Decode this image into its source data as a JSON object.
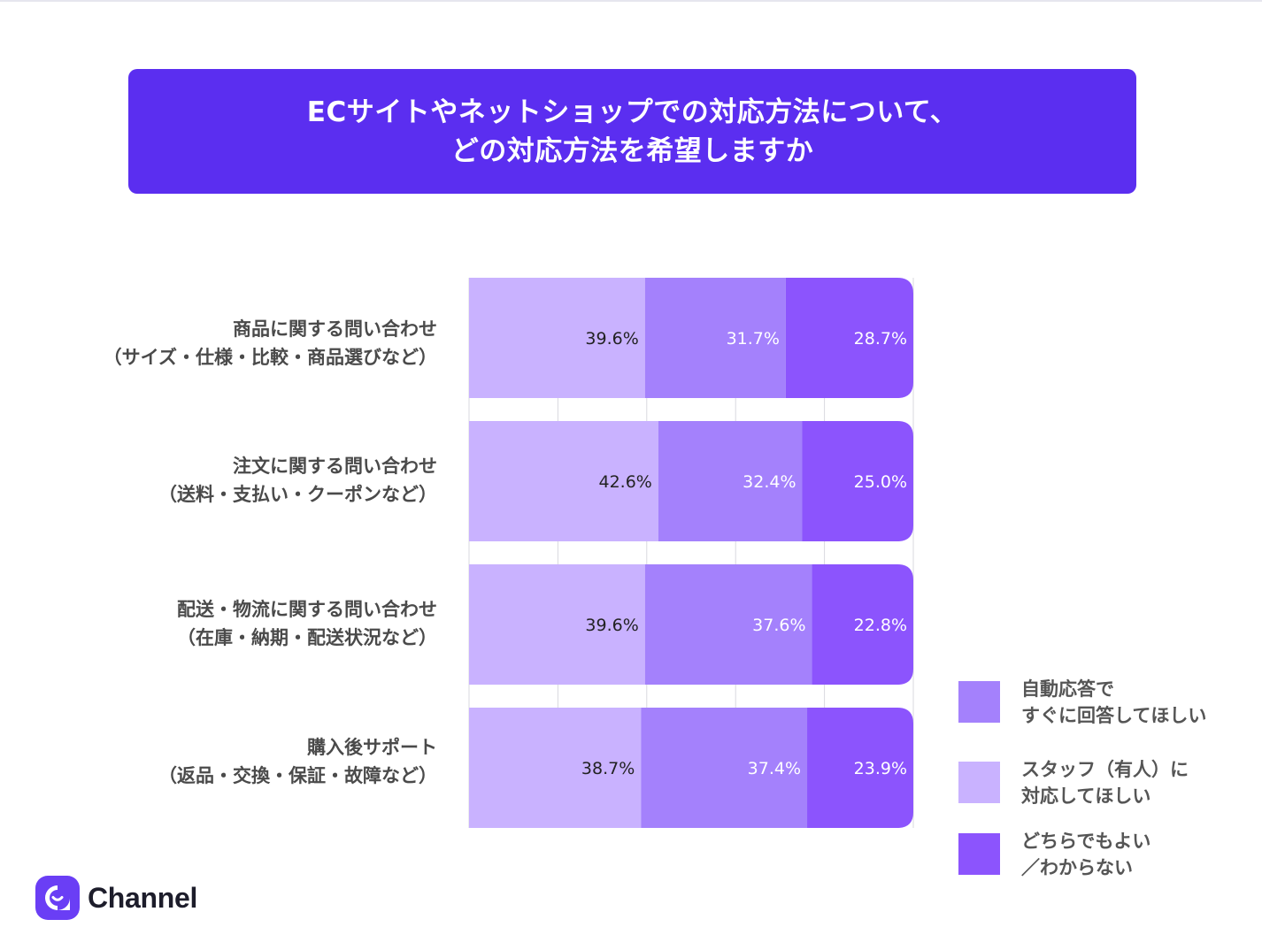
{
  "title": {
    "line1": "ECサイトやネットショップでの対応方法について、",
    "line2": "どの対応方法を希望しますか"
  },
  "chart_data": {
    "type": "bar",
    "orientation": "horizontal",
    "stacked": true,
    "categories": [
      [
        "商品に関する問い合わせ",
        "（サイズ・仕様・比較・商品選びなど）"
      ],
      [
        "注文に関する問い合わせ",
        "（送料・支払い・クーポンなど）"
      ],
      [
        "配送・物流に関する問い合わせ",
        "（在庫・納期・配送状況など）"
      ],
      [
        "購入後サポート",
        "（返品・交換・保証・故障など）"
      ]
    ],
    "series": [
      {
        "name": [
          "スタッフ（有人）に",
          "対応してほしい"
        ],
        "color": "#c9b2ff",
        "values": [
          39.6,
          42.6,
          39.6,
          38.7
        ]
      },
      {
        "name": [
          "自動応答で",
          "すぐに回答してほしい"
        ],
        "color": "#a481fc",
        "values": [
          31.7,
          32.4,
          37.6,
          37.4
        ]
      },
      {
        "name": [
          "どちらでもよい",
          "／わからない"
        ],
        "color": "#8c54fd",
        "values": [
          28.7,
          25.0,
          22.8,
          23.9
        ]
      }
    ],
    "value_labels": [
      [
        "39.6%",
        "31.7%",
        "28.7%"
      ],
      [
        "42.6%",
        "32.4%",
        "25.0%"
      ],
      [
        "39.6%",
        "37.6%",
        "22.8%"
      ],
      [
        "38.7%",
        "37.4%",
        "23.9%"
      ]
    ],
    "xlim": [
      0,
      100
    ],
    "grid": true,
    "legend_position": "right"
  },
  "legend_order": [
    1,
    0,
    2
  ],
  "brand": {
    "name": "Channel",
    "color": "#6a3ef5"
  }
}
